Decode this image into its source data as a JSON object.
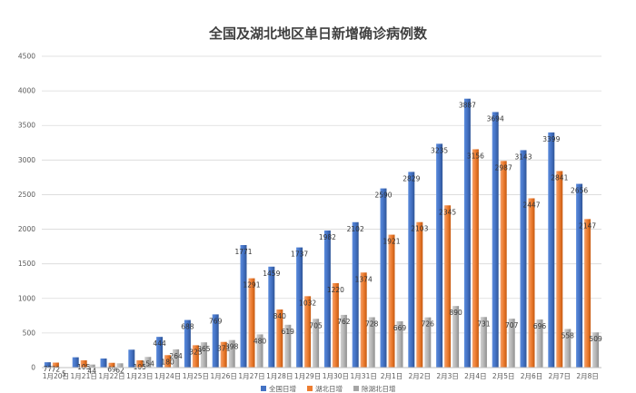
{
  "chart_data": {
    "type": "bar",
    "title": "全国及湖北地区单日新增确诊病例数",
    "xlabel": "",
    "ylabel": "",
    "ylim": [
      0,
      4500
    ],
    "yticks": [
      0,
      500,
      1000,
      1500,
      2000,
      2500,
      3000,
      3500,
      4000,
      4500
    ],
    "grid": true,
    "legend_position": "bottom",
    "categories": [
      "1月20日",
      "1月21日",
      "1月22日",
      "1月23日",
      "1月24日",
      "1月25日",
      "1月26日",
      "1月27日",
      "1月28日",
      "1月29日",
      "1月30日",
      "1月31日",
      "2月1日",
      "2月2日",
      "2月3日",
      "2月4日",
      "2月5日",
      "2月6日",
      "2月7日",
      "2月8日"
    ],
    "series": [
      {
        "name": "全国日增",
        "color": "#4472c4",
        "values": [
          77,
          149,
          131,
          259,
          444,
          688,
          769,
          1771,
          1459,
          1737,
          1982,
          2102,
          2590,
          2829,
          3235,
          3887,
          3694,
          3143,
          3399,
          2656
        ],
        "labels": [
          "77",
          "",
          "",
          "",
          "444",
          "688",
          "769",
          "1771",
          "1459",
          "1737",
          "1982",
          "2102",
          "2590",
          "2829",
          "3235",
          "3887",
          "3694",
          "3143",
          "3399",
          "2656"
        ]
      },
      {
        "name": "湖北日增",
        "color": "#ed7d31",
        "values": [
          72,
          105,
          69,
          105,
          180,
          323,
          371,
          1291,
          840,
          1032,
          1220,
          1374,
          1921,
          2103,
          2345,
          3156,
          2987,
          2447,
          2841,
          2147
        ],
        "labels": [
          "72",
          "105",
          "69",
          "105",
          "180",
          "323",
          "371",
          "1291",
          "840",
          "1032",
          "1220",
          "1374",
          "1921",
          "2103",
          "2345",
          "3156",
          "2987",
          "2447",
          "2841",
          "2147"
        ]
      },
      {
        "name": "除湖北日增",
        "color": "#a5a5a5",
        "values": [
          5,
          44,
          62,
          154,
          264,
          365,
          398,
          480,
          619,
          705,
          762,
          728,
          669,
          726,
          890,
          731,
          707,
          696,
          558,
          509
        ],
        "labels": [
          "5",
          "44",
          "62",
          "154",
          "264",
          "365",
          "398",
          "480",
          "619",
          "705",
          "762",
          "728",
          "669",
          "726",
          "890",
          "731",
          "707",
          "696",
          "558",
          "509"
        ]
      }
    ]
  }
}
